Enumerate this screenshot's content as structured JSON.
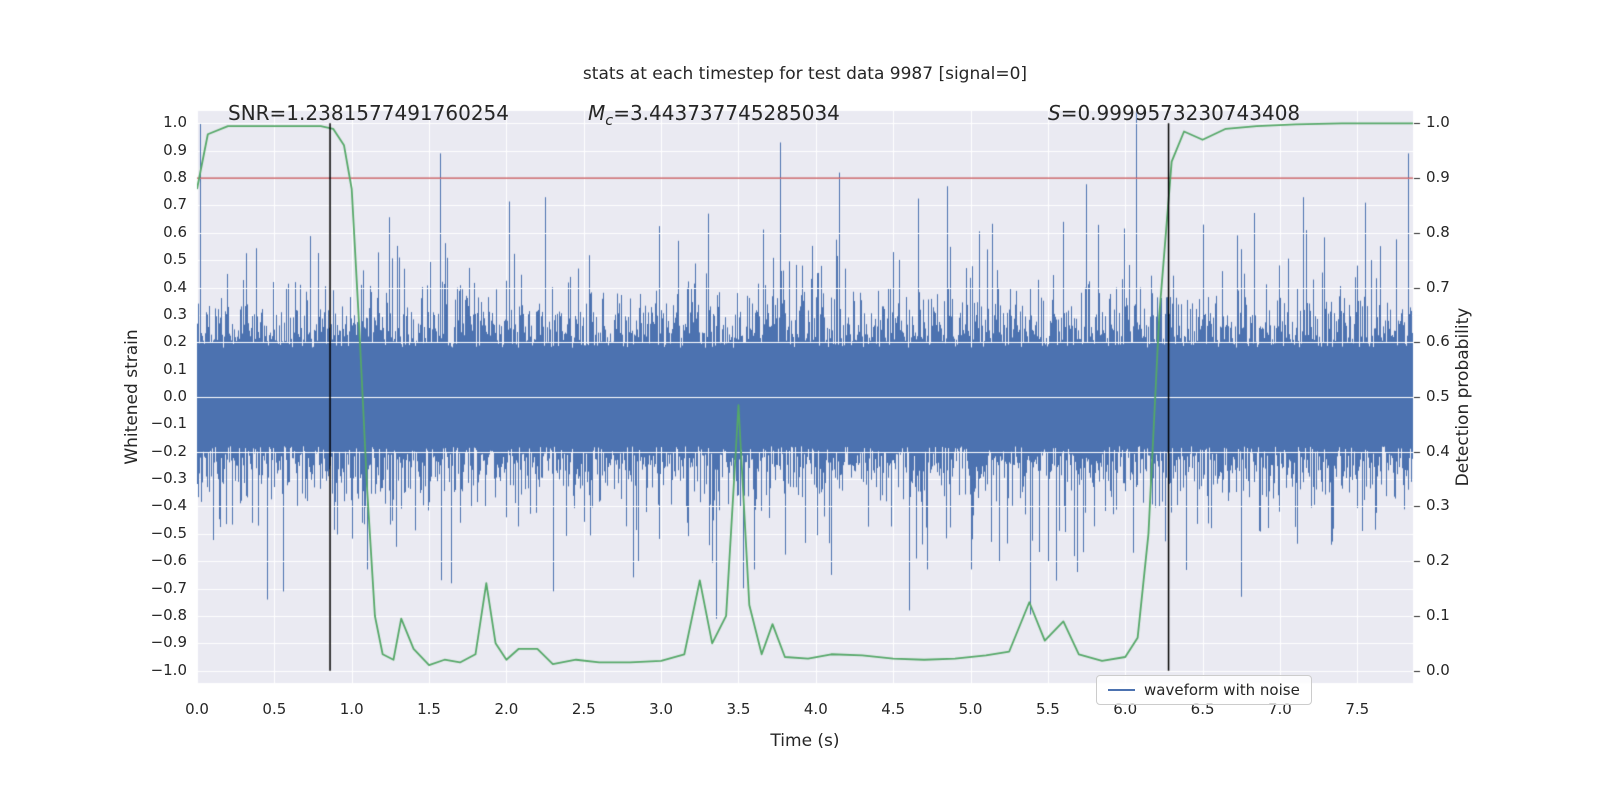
{
  "title": "stats at each timestep for test data 9987 [signal=0]",
  "annotations": {
    "snr_text": "SNR=1.2381577491760254",
    "mc_var": "M",
    "mc_sub": "c",
    "mc_rest": "=3.443737745285034",
    "s_var": "S",
    "s_rest": "=0.9999573230743408"
  },
  "legend": {
    "label": "waveform with noise"
  },
  "colors": {
    "waveform": "#4c72b0",
    "detection": "#55a868",
    "threshold": "#c44e52",
    "marker_line": "#000000",
    "plot_bg": "#eaeaf2",
    "grid": "#ffffff",
    "text": "#262626"
  },
  "chart_data": {
    "type": "line",
    "title": "stats at each timestep for test data 9987 [signal=0]",
    "xlabel": "Time (s)",
    "ylabel_left": "Whitened strain",
    "ylabel_right": "Detection probability",
    "xlim": [
      0,
      7.86
    ],
    "ylim_left": [
      -1.045,
      1.045
    ],
    "ylim_right": [
      -0.0225,
      1.0225
    ],
    "grid": true,
    "legend_position": "lower right",
    "x_ticks": [
      [
        0,
        "0.0"
      ],
      [
        0.5,
        "0.5"
      ],
      [
        1,
        "1.0"
      ],
      [
        1.5,
        "1.5"
      ],
      [
        2,
        "2.0"
      ],
      [
        2.5,
        "2.5"
      ],
      [
        3,
        "3.0"
      ],
      [
        3.5,
        "3.5"
      ],
      [
        4,
        "4.0"
      ],
      [
        4.5,
        "4.5"
      ],
      [
        5,
        "5.0"
      ],
      [
        5.5,
        "5.5"
      ],
      [
        6,
        "6.0"
      ],
      [
        6.5,
        "6.5"
      ],
      [
        7,
        "7.0"
      ],
      [
        7.5,
        "7.5"
      ]
    ],
    "y_left_ticks": [
      [
        1.0,
        "1.0"
      ],
      [
        0.9,
        "0.9"
      ],
      [
        0.8,
        "0.8"
      ],
      [
        0.7,
        "0.7"
      ],
      [
        0.6,
        "0.6"
      ],
      [
        0.5,
        "0.5"
      ],
      [
        0.4,
        "0.4"
      ],
      [
        0.3,
        "0.3"
      ],
      [
        0.2,
        "0.2"
      ],
      [
        0.1,
        "0.1"
      ],
      [
        0.0,
        "0.0"
      ],
      [
        -0.1,
        "−0.1"
      ],
      [
        -0.2,
        "−0.2"
      ],
      [
        -0.3,
        "−0.3"
      ],
      [
        -0.4,
        "−0.4"
      ],
      [
        -0.5,
        "−0.5"
      ],
      [
        -0.6,
        "−0.6"
      ],
      [
        -0.7,
        "−0.7"
      ],
      [
        -0.8,
        "−0.8"
      ],
      [
        -0.9,
        "−0.9"
      ],
      [
        -1.0,
        "−1.0"
      ]
    ],
    "y_right_ticks": [
      [
        1.0,
        "1.0"
      ],
      [
        0.9,
        "0.9"
      ],
      [
        0.8,
        "0.8"
      ],
      [
        0.7,
        "0.7"
      ],
      [
        0.6,
        "0.6"
      ],
      [
        0.5,
        "0.5"
      ],
      [
        0.4,
        "0.4"
      ],
      [
        0.3,
        "0.3"
      ],
      [
        0.2,
        "0.2"
      ],
      [
        0.1,
        "0.1"
      ],
      [
        0.0,
        "0.0"
      ]
    ],
    "series": [
      {
        "name": "waveform with noise",
        "axis": "left",
        "render": "noise-band",
        "color": "#4c72b0",
        "seed": 9987,
        "base_amplitude": 0.18,
        "amplitude_spread": 0.1,
        "mid_spike_prob": 0.1,
        "mid_spike_add": [
          0.05,
          0.3
        ],
        "big_spike_prob": 0.005,
        "big_spike_add": [
          0.25,
          0.55
        ],
        "clip": 1.04,
        "notable_spikes": [
          [
            0.02,
            1.0
          ],
          [
            0.45,
            -0.74
          ],
          [
            1.1,
            -0.63
          ],
          [
            1.57,
            0.89
          ],
          [
            2.25,
            0.73
          ],
          [
            2.3,
            -0.71
          ],
          [
            2.85,
            -0.6
          ],
          [
            3.3,
            0.67
          ],
          [
            3.6,
            -0.63
          ],
          [
            3.77,
            0.93
          ],
          [
            4.1,
            -0.65
          ],
          [
            4.15,
            0.82
          ],
          [
            4.6,
            -0.78
          ],
          [
            4.85,
            0.77
          ],
          [
            5.0,
            -0.63
          ],
          [
            5.5,
            -0.6
          ],
          [
            5.6,
            0.64
          ],
          [
            6.07,
            1.04
          ],
          [
            6.5,
            0.63
          ],
          [
            6.75,
            -0.73
          ],
          [
            7.15,
            0.73
          ],
          [
            7.55,
            0.71
          ],
          [
            7.83,
            0.89
          ],
          [
            7.9,
            -1.02
          ]
        ]
      },
      {
        "name": "detection probability",
        "axis": "right",
        "render": "line",
        "color": "#55a868",
        "points": [
          [
            0.0,
            0.88
          ],
          [
            0.07,
            0.98
          ],
          [
            0.2,
            0.995
          ],
          [
            0.5,
            0.995
          ],
          [
            0.8,
            0.995
          ],
          [
            0.88,
            0.99
          ],
          [
            0.95,
            0.96
          ],
          [
            1.0,
            0.88
          ],
          [
            1.05,
            0.62
          ],
          [
            1.1,
            0.33
          ],
          [
            1.15,
            0.1
          ],
          [
            1.2,
            0.03
          ],
          [
            1.27,
            0.02
          ],
          [
            1.32,
            0.095
          ],
          [
            1.4,
            0.04
          ],
          [
            1.5,
            0.01
          ],
          [
            1.6,
            0.02
          ],
          [
            1.7,
            0.015
          ],
          [
            1.8,
            0.03
          ],
          [
            1.87,
            0.16
          ],
          [
            1.93,
            0.05
          ],
          [
            2.0,
            0.02
          ],
          [
            2.08,
            0.04
          ],
          [
            2.2,
            0.04
          ],
          [
            2.3,
            0.012
          ],
          [
            2.45,
            0.02
          ],
          [
            2.6,
            0.015
          ],
          [
            2.8,
            0.015
          ],
          [
            3.0,
            0.018
          ],
          [
            3.15,
            0.03
          ],
          [
            3.25,
            0.165
          ],
          [
            3.33,
            0.05
          ],
          [
            3.42,
            0.1
          ],
          [
            3.5,
            0.485
          ],
          [
            3.57,
            0.12
          ],
          [
            3.65,
            0.03
          ],
          [
            3.72,
            0.085
          ],
          [
            3.8,
            0.025
          ],
          [
            3.95,
            0.022
          ],
          [
            4.1,
            0.03
          ],
          [
            4.3,
            0.028
          ],
          [
            4.5,
            0.022
          ],
          [
            4.7,
            0.02
          ],
          [
            4.9,
            0.022
          ],
          [
            5.1,
            0.028
          ],
          [
            5.25,
            0.035
          ],
          [
            5.38,
            0.125
          ],
          [
            5.48,
            0.055
          ],
          [
            5.6,
            0.09
          ],
          [
            5.7,
            0.03
          ],
          [
            5.85,
            0.018
          ],
          [
            6.0,
            0.025
          ],
          [
            6.08,
            0.06
          ],
          [
            6.15,
            0.25
          ],
          [
            6.22,
            0.65
          ],
          [
            6.3,
            0.93
          ],
          [
            6.38,
            0.985
          ],
          [
            6.5,
            0.97
          ],
          [
            6.65,
            0.99
          ],
          [
            6.85,
            0.995
          ],
          [
            7.1,
            0.998
          ],
          [
            7.4,
            1.0
          ],
          [
            7.7,
            1.0
          ],
          [
            7.86,
            1.0
          ]
        ]
      }
    ],
    "reference_lines": {
      "threshold": {
        "axis": "right",
        "y": 0.9,
        "color": "#c44e52"
      },
      "event_markers": {
        "x": [
          0.86,
          6.28
        ],
        "y_range_left": [
          -1.0,
          1.0
        ],
        "color": "#000000"
      }
    }
  }
}
